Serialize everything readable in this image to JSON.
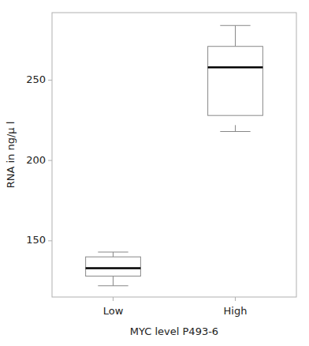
{
  "chart_data": {
    "type": "box",
    "xlabel": "MYC level P493-6",
    "ylabel": "RNA in ng/μ l",
    "categories": [
      "Low",
      "High"
    ],
    "boxes": [
      {
        "whisker_low": 122,
        "q1": 128,
        "median": 133,
        "q3": 140,
        "whisker_high": 143
      },
      {
        "whisker_low": 218,
        "whisker_low_start": 222,
        "q1": 228,
        "median": 258,
        "q3": 271,
        "whisker_high": 284
      }
    ],
    "color": "#888888",
    "ylim": [
      115,
      292
    ],
    "yticks": [
      150,
      200,
      250
    ]
  }
}
